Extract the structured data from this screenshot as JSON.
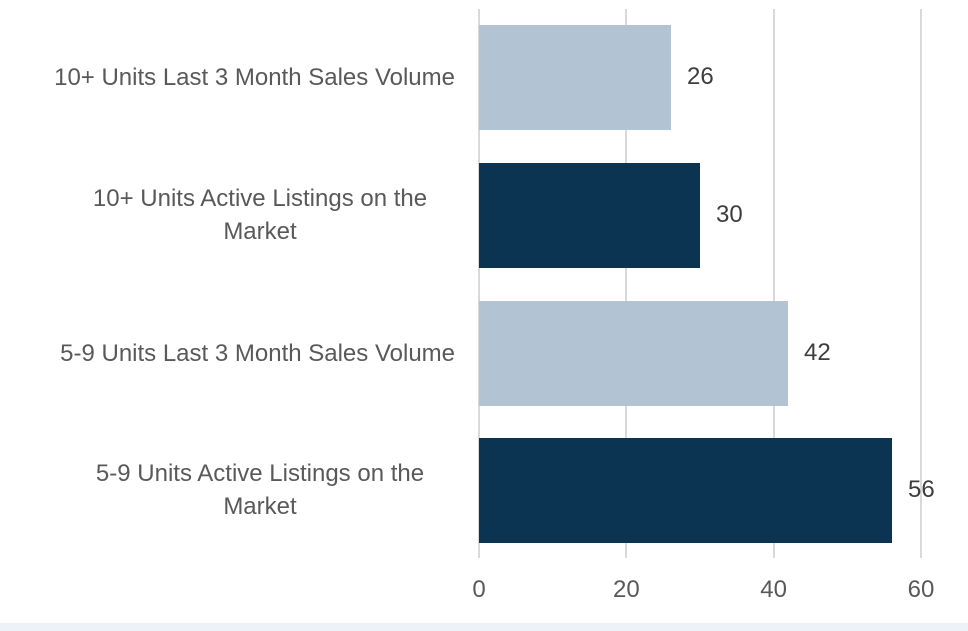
{
  "chart_data": {
    "type": "bar",
    "orientation": "horizontal",
    "title": "",
    "xlabel": "",
    "ylabel": "",
    "categories": [
      "10+ Units Last 3 Month Sales Volume",
      "10+ Units Active Listings on the Market",
      "5-9 Units Last 3 Month Sales Volume",
      "5-9 Units Active Listings on the Market"
    ],
    "values": [
      26,
      30,
      42,
      56
    ],
    "data_labels": [
      "26",
      "30",
      "42",
      "56"
    ],
    "xlim": [
      0,
      60
    ],
    "xticks": [
      0,
      20,
      40,
      60
    ],
    "xtick_labels": [
      "0",
      "20",
      "40",
      "60"
    ],
    "grid": "vertical-gridlines-on",
    "legend": "none",
    "bar_colors": [
      "#B2C4D3",
      "#0B3452",
      "#B2C4D3",
      "#0B3452"
    ]
  },
  "colors": {
    "bar_light": "#B2C4D3",
    "bar_dark": "#0B3452",
    "gridline": "#D9D9D9",
    "category_label_text": "#595959",
    "value_label_text": "#3D3D3D",
    "tick_label_text": "#595959",
    "background": "#FFFFFF",
    "bottom_strip": "#EDF2F8"
  }
}
